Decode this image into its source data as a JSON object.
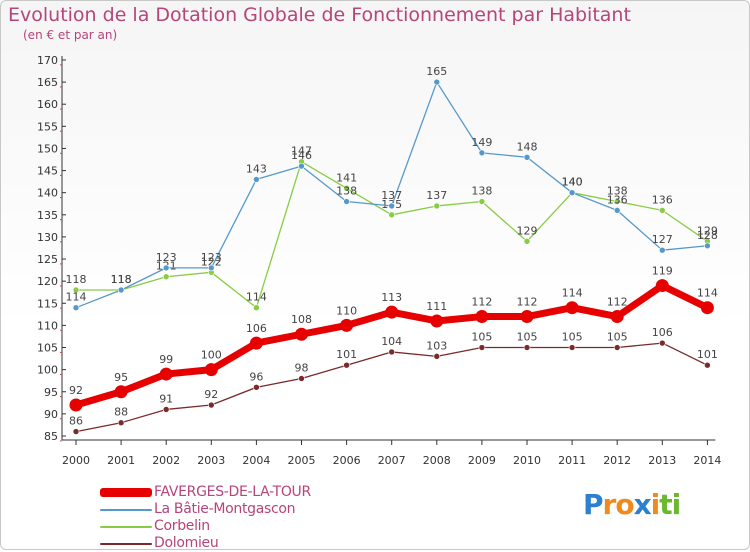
{
  "header": {
    "title": "Evolution de la Dotation Globale de Fonctionnement par Habitant",
    "subtitle": "(en € et par an)"
  },
  "brand": {
    "letters": [
      "P",
      "r",
      "o",
      "x",
      "i",
      "t",
      "i"
    ],
    "colors": [
      "#2d7fd0",
      "#f08a1c",
      "#f08a1c",
      "#2d7fd0",
      "#f08a1c",
      "#6ab82e",
      "#6ab82e"
    ]
  },
  "colors": {
    "title": "#b5457a",
    "axis": "#333333",
    "grid_dots": "#cc4444"
  },
  "chart_data": {
    "type": "line",
    "x": [
      "2000",
      "2001",
      "2002",
      "2003",
      "2004",
      "2005",
      "2006",
      "2007",
      "2008",
      "2009",
      "2010",
      "2011",
      "2012",
      "2013",
      "2014"
    ],
    "ylim": [
      85,
      170
    ],
    "yticks": [
      85,
      90,
      95,
      100,
      105,
      110,
      115,
      120,
      125,
      130,
      135,
      140,
      145,
      150,
      155,
      160,
      165,
      170
    ],
    "grid": false,
    "legend_position": "bottom-left",
    "series": [
      {
        "name": "FAVERGES-DE-LA-TOUR",
        "values": [
          92,
          95,
          99,
          100,
          106,
          108,
          110,
          113,
          111,
          112,
          112,
          114,
          112,
          119,
          114
        ],
        "color": "#e60000"
      },
      {
        "name": "La Bâtie-Montgascon",
        "values": [
          114,
          118,
          123,
          123,
          143,
          146,
          138,
          137,
          165,
          149,
          148,
          140,
          136,
          127,
          128
        ],
        "color": "#5599cc"
      },
      {
        "name": "Corbelin",
        "values": [
          118,
          118,
          121,
          122,
          114,
          147,
          141,
          135,
          137,
          138,
          129,
          140,
          138,
          136,
          129
        ],
        "color": "#88cc44"
      },
      {
        "name": "Dolomieu",
        "values": [
          86,
          88,
          91,
          92,
          96,
          98,
          101,
          104,
          103,
          105,
          105,
          105,
          105,
          106,
          101
        ],
        "color": "#7a2a2a"
      }
    ]
  }
}
